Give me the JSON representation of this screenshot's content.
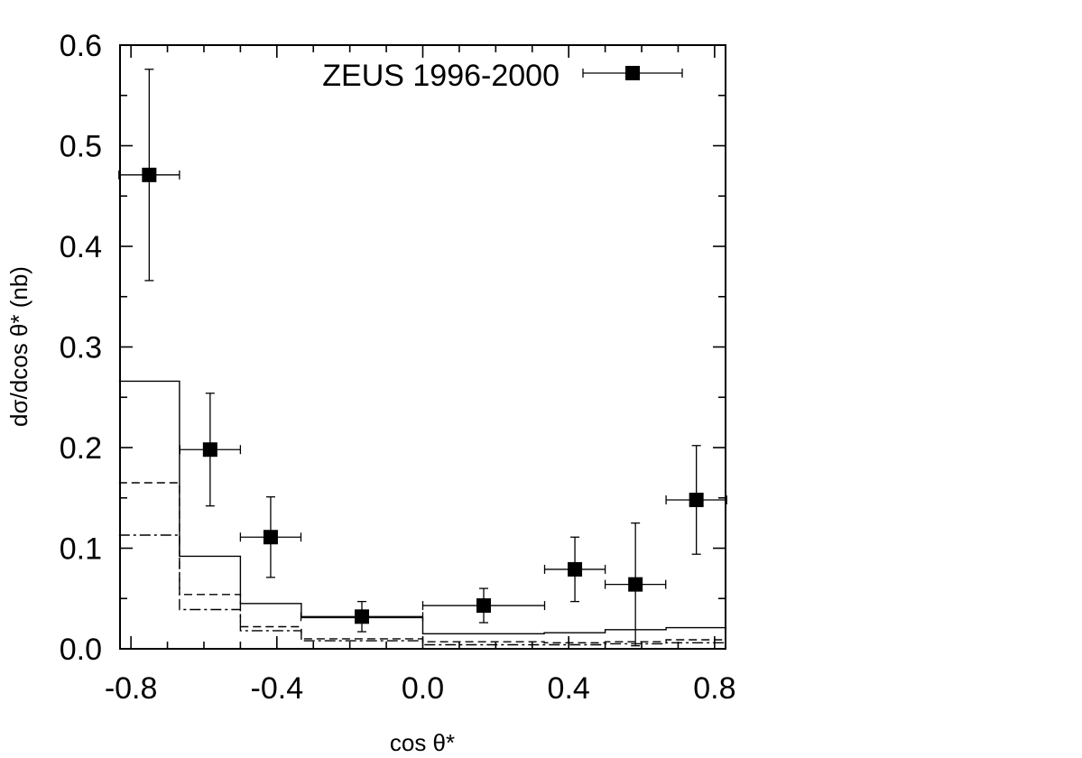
{
  "chart_data": {
    "type": "scatter",
    "title": "",
    "xlabel": "cos θ*",
    "ylabel": "dσ/dcos θ* (nb)",
    "xlim": [
      -0.83,
      0.83
    ],
    "ylim": [
      0.0,
      0.6
    ],
    "x_ticks": [
      {
        "value": -0.8,
        "label": "-0.8"
      },
      {
        "value": -0.4,
        "label": "-0.4"
      },
      {
        "value": 0.0,
        "label": "0.0"
      },
      {
        "value": 0.4,
        "label": "0.4"
      },
      {
        "value": 0.8,
        "label": "0.8"
      }
    ],
    "y_ticks": [
      {
        "value": 0.0,
        "label": "0.0"
      },
      {
        "value": 0.1,
        "label": "0.1"
      },
      {
        "value": 0.2,
        "label": "0.2"
      },
      {
        "value": 0.3,
        "label": "0.3"
      },
      {
        "value": 0.4,
        "label": "0.4"
      },
      {
        "value": 0.5,
        "label": "0.5"
      },
      {
        "value": 0.6,
        "label": "0.6"
      }
    ],
    "legend": {
      "placement": "top-right",
      "entries": [
        "ZEUS 1996-2000"
      ]
    },
    "series": [
      {
        "name": "ZEUS 1996-2000",
        "style": "points",
        "points": [
          {
            "x": -0.75,
            "y": 0.471,
            "xerr_lo": 0.083,
            "xerr_hi": 0.083,
            "yerr_lo": 0.105,
            "yerr_hi": 0.105
          },
          {
            "x": -0.583,
            "y": 0.198,
            "xerr_lo": 0.083,
            "xerr_hi": 0.083,
            "yerr_lo": 0.056,
            "yerr_hi": 0.056
          },
          {
            "x": -0.417,
            "y": 0.111,
            "xerr_lo": 0.083,
            "xerr_hi": 0.083,
            "yerr_lo": 0.04,
            "yerr_hi": 0.04
          },
          {
            "x": -0.167,
            "y": 0.032,
            "xerr_lo": 0.167,
            "xerr_hi": 0.167,
            "yerr_lo": 0.015,
            "yerr_hi": 0.015
          },
          {
            "x": 0.167,
            "y": 0.043,
            "xerr_lo": 0.167,
            "xerr_hi": 0.167,
            "yerr_lo": 0.017,
            "yerr_hi": 0.017
          },
          {
            "x": 0.417,
            "y": 0.079,
            "xerr_lo": 0.083,
            "xerr_hi": 0.083,
            "yerr_lo": 0.032,
            "yerr_hi": 0.032
          },
          {
            "x": 0.583,
            "y": 0.064,
            "xerr_lo": 0.083,
            "xerr_hi": 0.083,
            "yerr_lo": 0.061,
            "yerr_hi": 0.061
          },
          {
            "x": 0.75,
            "y": 0.148,
            "xerr_lo": 0.083,
            "xerr_hi": 0.083,
            "yerr_lo": 0.054,
            "yerr_hi": 0.054
          }
        ]
      },
      {
        "style": "histogram-solid",
        "bin_edges": [
          -0.833,
          -0.667,
          -0.5,
          -0.333,
          0.0,
          0.333,
          0.5,
          0.667,
          0.833
        ],
        "values": [
          0.266,
          0.092,
          0.045,
          0.031,
          0.015,
          0.016,
          0.019,
          0.021
        ]
      },
      {
        "style": "histogram-dashed",
        "bin_edges": [
          -0.833,
          -0.667,
          -0.5,
          -0.333,
          0.0,
          0.333,
          0.5,
          0.667,
          0.833
        ],
        "values": [
          0.165,
          0.054,
          0.022,
          0.01,
          0.007,
          0.006,
          0.007,
          0.009
        ]
      },
      {
        "style": "histogram-dashdot",
        "bin_edges": [
          -0.833,
          -0.667,
          -0.5,
          -0.333,
          0.0,
          0.333,
          0.5,
          0.667,
          0.833
        ],
        "values": [
          0.113,
          0.039,
          0.018,
          0.008,
          0.004,
          0.004,
          0.005,
          0.006
        ]
      }
    ]
  }
}
